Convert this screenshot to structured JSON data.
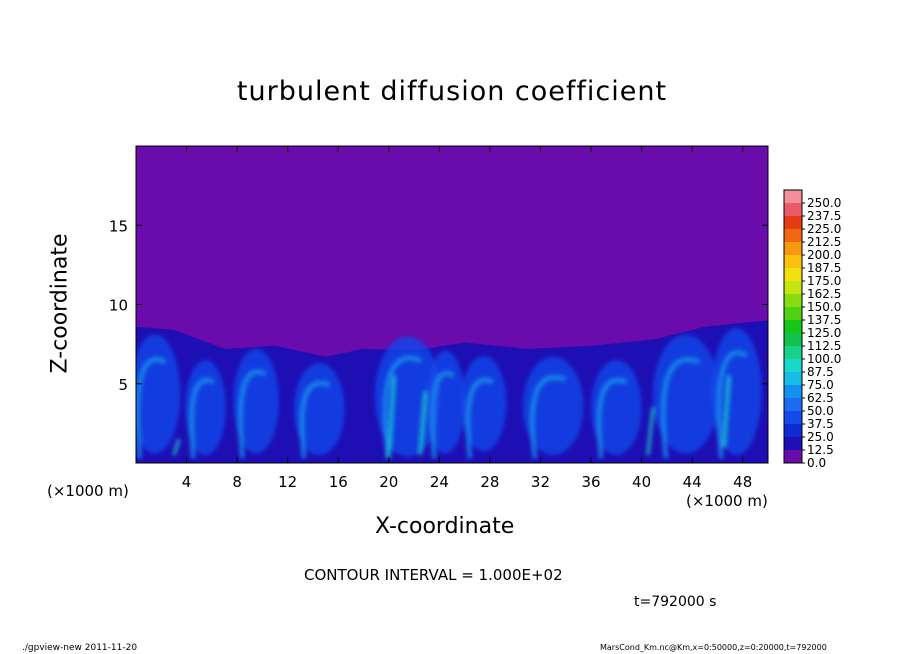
{
  "chart_data": {
    "type": "heatmap",
    "title": "turbulent diffusion coefficient",
    "xlabel": "X-coordinate",
    "ylabel": "Z-coordinate",
    "x_unit_left": "(×1000 m)",
    "x_unit_right": "(×1000 m)",
    "xlim": [
      0,
      50
    ],
    "ylim": [
      0,
      20
    ],
    "xticks": [
      "4",
      "8",
      "12",
      "16",
      "20",
      "24",
      "28",
      "32",
      "36",
      "40",
      "44",
      "48"
    ],
    "xtick_values": [
      4,
      8,
      12,
      16,
      20,
      24,
      28,
      32,
      36,
      40,
      44,
      48
    ],
    "yticks": [
      "5",
      "10",
      "15"
    ],
    "ytick_values": [
      5,
      10,
      15
    ],
    "colorbar": {
      "labels": [
        "0.0",
        "12.5",
        "25.0",
        "37.5",
        "50.0",
        "62.5",
        "75.0",
        "87.5",
        "100.0",
        "112.5",
        "125.0",
        "137.5",
        "150.0",
        "162.5",
        "175.0",
        "187.5",
        "200.0",
        "212.5",
        "225.0",
        "237.5",
        "250.0"
      ],
      "colors": [
        "#6a0bab",
        "#1e0fb4",
        "#0f2bd4",
        "#1449ea",
        "#1c6cf2",
        "#1690ee",
        "#17bde8",
        "#19d8cc",
        "#16d28a",
        "#13c24c",
        "#1ac51a",
        "#4fd214",
        "#87dd12",
        "#c3e612",
        "#f1e20f",
        "#fac20f",
        "#f89811",
        "#f26811",
        "#e73b13",
        "#ea5b6a",
        "#f38f9b"
      ]
    },
    "boundary_layer_top_km": [
      8.6,
      8.4,
      7.2,
      7.4,
      6.7,
      7.2,
      7.1,
      7.6,
      7.2,
      7.4,
      7.8,
      8.6,
      9.0
    ],
    "boundary_layer_x_km": [
      0,
      3,
      7,
      11,
      15,
      18,
      22,
      26,
      31,
      36,
      41,
      45,
      50
    ],
    "background_color": "#6a0bab"
  },
  "annotations": {
    "contour_interval": "CONTOUR INTERVAL = 1.000E+02",
    "time": "t=792000 s"
  },
  "footer": {
    "left": "./gpview-new  2011-11-20",
    "right": "MarsCond_Km.nc@Km,x=0:50000,z=0:20000,t=792000"
  }
}
